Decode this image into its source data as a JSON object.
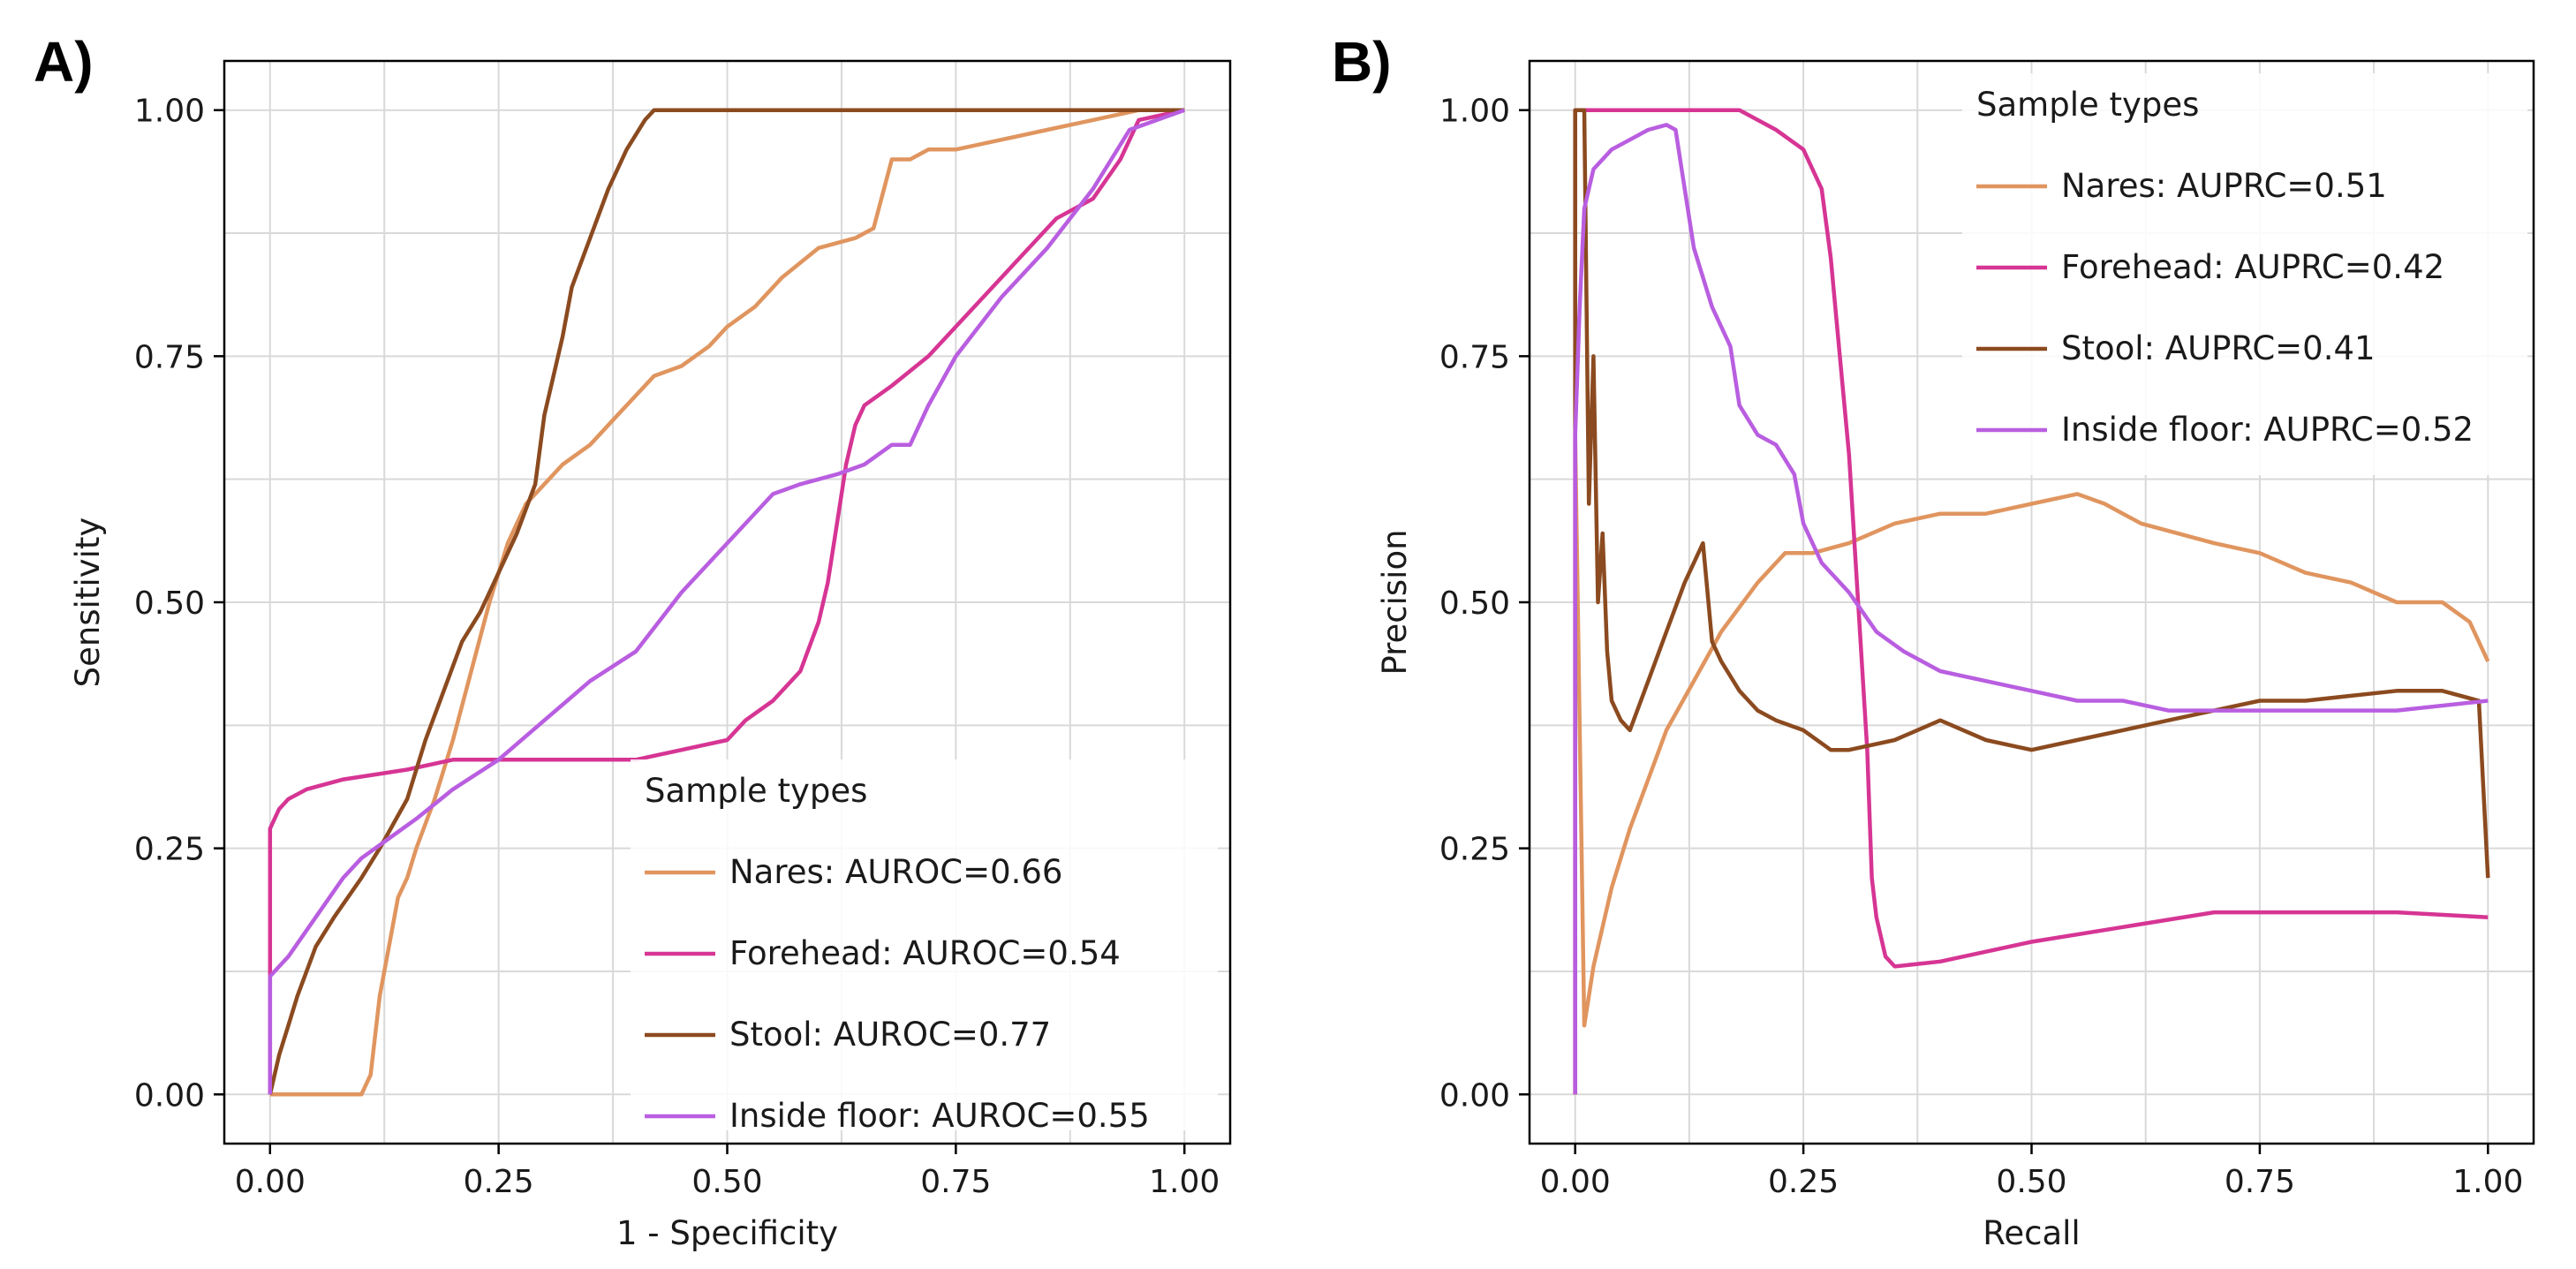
{
  "chart_data": [
    {
      "panel_label": "A)",
      "type": "line",
      "xlabel": "1 - Specificity",
      "ylabel": "Sensitivity",
      "xlim": [
        -0.05,
        1.05
      ],
      "ylim": [
        -0.05,
        1.05
      ],
      "xticks": [
        "0.00",
        "0.25",
        "0.50",
        "0.75",
        "1.00"
      ],
      "yticks": [
        "0.00",
        "0.25",
        "0.50",
        "0.75",
        "1.00"
      ],
      "grid": true,
      "legend": {
        "title": "Sample types",
        "placement": "lower-right",
        "entries": [
          "Nares: AUROC=0.66",
          "Forehead: AUROC=0.54",
          "Stool: AUROC=0.77",
          "Inside floor: AUROC=0.55"
        ]
      },
      "series": [
        {
          "name": "Nares: AUROC=0.66",
          "color": "#e0955f",
          "x": [
            0,
            0.05,
            0.1,
            0.11,
            0.12,
            0.13,
            0.14,
            0.15,
            0.16,
            0.18,
            0.2,
            0.22,
            0.24,
            0.26,
            0.28,
            0.3,
            0.32,
            0.35,
            0.38,
            0.4,
            0.42,
            0.45,
            0.48,
            0.5,
            0.53,
            0.56,
            0.6,
            0.64,
            0.66,
            0.68,
            0.7,
            0.72,
            0.75,
            0.8,
            0.85,
            0.9,
            0.95,
            1.0
          ],
          "y": [
            0,
            0,
            0,
            0.02,
            0.1,
            0.15,
            0.2,
            0.22,
            0.25,
            0.3,
            0.36,
            0.43,
            0.5,
            0.56,
            0.6,
            0.62,
            0.64,
            0.66,
            0.69,
            0.71,
            0.73,
            0.74,
            0.76,
            0.78,
            0.8,
            0.83,
            0.86,
            0.87,
            0.88,
            0.95,
            0.95,
            0.96,
            0.96,
            0.97,
            0.98,
            0.99,
            1.0,
            1.0
          ]
        },
        {
          "name": "Forehead: AUROC=0.54",
          "color": "#d63594",
          "x": [
            0,
            0,
            0.01,
            0.02,
            0.04,
            0.08,
            0.15,
            0.2,
            0.3,
            0.4,
            0.45,
            0.5,
            0.52,
            0.55,
            0.58,
            0.6,
            0.61,
            0.62,
            0.63,
            0.64,
            0.65,
            0.68,
            0.72,
            0.75,
            0.78,
            0.82,
            0.86,
            0.9,
            0.93,
            0.95,
            1.0
          ],
          "y": [
            0,
            0.27,
            0.29,
            0.3,
            0.31,
            0.32,
            0.33,
            0.34,
            0.34,
            0.34,
            0.35,
            0.36,
            0.38,
            0.4,
            0.43,
            0.48,
            0.52,
            0.58,
            0.64,
            0.68,
            0.7,
            0.72,
            0.75,
            0.78,
            0.81,
            0.85,
            0.89,
            0.91,
            0.95,
            0.99,
            1.0
          ]
        },
        {
          "name": "Stool: AUROC=0.77",
          "color": "#8b4a1f",
          "x": [
            0,
            0.01,
            0.02,
            0.03,
            0.05,
            0.07,
            0.1,
            0.12,
            0.15,
            0.17,
            0.19,
            0.21,
            0.23,
            0.25,
            0.27,
            0.29,
            0.3,
            0.32,
            0.33,
            0.35,
            0.37,
            0.39,
            0.41,
            0.42,
            1.0
          ],
          "y": [
            0,
            0.04,
            0.07,
            0.1,
            0.15,
            0.18,
            0.22,
            0.25,
            0.3,
            0.36,
            0.41,
            0.46,
            0.49,
            0.53,
            0.57,
            0.62,
            0.69,
            0.77,
            0.82,
            0.87,
            0.92,
            0.96,
            0.99,
            1.0,
            1.0
          ]
        },
        {
          "name": "Inside floor: AUROC=0.55",
          "color": "#b95ee0",
          "x": [
            0,
            0,
            0.02,
            0.05,
            0.08,
            0.1,
            0.13,
            0.16,
            0.2,
            0.25,
            0.3,
            0.35,
            0.4,
            0.45,
            0.5,
            0.55,
            0.58,
            0.62,
            0.65,
            0.68,
            0.7,
            0.72,
            0.75,
            0.8,
            0.85,
            0.9,
            0.92,
            0.94,
            1.0
          ],
          "y": [
            0,
            0.12,
            0.14,
            0.18,
            0.22,
            0.24,
            0.26,
            0.28,
            0.31,
            0.34,
            0.38,
            0.42,
            0.45,
            0.51,
            0.56,
            0.61,
            0.62,
            0.63,
            0.64,
            0.66,
            0.66,
            0.7,
            0.75,
            0.81,
            0.86,
            0.92,
            0.95,
            0.98,
            1.0
          ]
        }
      ]
    },
    {
      "panel_label": "B)",
      "type": "line",
      "xlabel": "Recall",
      "ylabel": "Precision",
      "xlim": [
        -0.05,
        1.05
      ],
      "ylim": [
        -0.05,
        1.05
      ],
      "xticks": [
        "0.00",
        "0.25",
        "0.50",
        "0.75",
        "1.00"
      ],
      "yticks": [
        "0.00",
        "0.25",
        "0.50",
        "0.75",
        "1.00"
      ],
      "grid": true,
      "legend": {
        "title": "Sample types",
        "placement": "upper-right",
        "entries": [
          "Nares: AUPRC=0.51",
          "Forehead: AUPRC=0.42",
          "Stool: AUPRC=0.41",
          "Inside floor: AUPRC=0.52"
        ]
      },
      "series": [
        {
          "name": "Nares: AUPRC=0.51",
          "color": "#e0955f",
          "x": [
            0,
            0,
            0.01,
            0.02,
            0.04,
            0.06,
            0.08,
            0.1,
            0.13,
            0.16,
            0.2,
            0.23,
            0.26,
            0.3,
            0.35,
            0.4,
            0.45,
            0.5,
            0.55,
            0.58,
            0.62,
            0.7,
            0.75,
            0.8,
            0.85,
            0.9,
            0.95,
            0.98,
            1.0
          ],
          "y": [
            0,
            0.67,
            0.07,
            0.13,
            0.21,
            0.27,
            0.32,
            0.37,
            0.42,
            0.47,
            0.52,
            0.55,
            0.55,
            0.56,
            0.58,
            0.59,
            0.59,
            0.6,
            0.61,
            0.6,
            0.58,
            0.56,
            0.55,
            0.53,
            0.52,
            0.5,
            0.5,
            0.48,
            0.44
          ]
        },
        {
          "name": "Forehead: AUPRC=0.42",
          "color": "#d63594",
          "x": [
            0,
            0,
            0.01,
            0.05,
            0.18,
            0.22,
            0.25,
            0.27,
            0.28,
            0.29,
            0.3,
            0.31,
            0.32,
            0.325,
            0.33,
            0.34,
            0.35,
            0.4,
            0.5,
            0.6,
            0.7,
            0.8,
            0.9,
            1.0
          ],
          "y": [
            0,
            1.0,
            1.0,
            1.0,
            1.0,
            0.98,
            0.96,
            0.92,
            0.85,
            0.75,
            0.65,
            0.5,
            0.35,
            0.22,
            0.18,
            0.14,
            0.13,
            0.135,
            0.155,
            0.17,
            0.185,
            0.185,
            0.185,
            0.18
          ]
        },
        {
          "name": "Stool: AUPRC=0.41",
          "color": "#8b4a1f",
          "x": [
            0,
            0,
            0.005,
            0.01,
            0.015,
            0.02,
            0.025,
            0.03,
            0.035,
            0.04,
            0.05,
            0.06,
            0.08,
            0.1,
            0.12,
            0.14,
            0.15,
            0.16,
            0.18,
            0.2,
            0.22,
            0.25,
            0.28,
            0.3,
            0.35,
            0.4,
            0.45,
            0.5,
            0.55,
            0.6,
            0.65,
            0.7,
            0.75,
            0.8,
            0.85,
            0.9,
            0.95,
            0.99,
            1.0
          ],
          "y": [
            0,
            1.0,
            1.0,
            1.0,
            0.6,
            0.75,
            0.5,
            0.57,
            0.45,
            0.4,
            0.38,
            0.37,
            0.42,
            0.47,
            0.52,
            0.56,
            0.46,
            0.44,
            0.41,
            0.39,
            0.38,
            0.37,
            0.35,
            0.35,
            0.36,
            0.38,
            0.36,
            0.35,
            0.36,
            0.37,
            0.38,
            0.39,
            0.4,
            0.4,
            0.405,
            0.41,
            0.41,
            0.4,
            0.22
          ]
        },
        {
          "name": "Inside floor: AUPRC=0.52",
          "color": "#b95ee0",
          "x": [
            0,
            0,
            0.005,
            0.01,
            0.02,
            0.04,
            0.06,
            0.08,
            0.1,
            0.11,
            0.12,
            0.13,
            0.15,
            0.17,
            0.18,
            0.2,
            0.22,
            0.24,
            0.25,
            0.27,
            0.3,
            0.33,
            0.36,
            0.4,
            0.45,
            0.5,
            0.55,
            0.6,
            0.65,
            0.7,
            0.8,
            0.9,
            1.0
          ],
          "y": [
            0,
            0.67,
            0.8,
            0.9,
            0.94,
            0.96,
            0.97,
            0.98,
            0.985,
            0.98,
            0.92,
            0.86,
            0.8,
            0.76,
            0.7,
            0.67,
            0.66,
            0.63,
            0.58,
            0.54,
            0.51,
            0.47,
            0.45,
            0.43,
            0.42,
            0.41,
            0.4,
            0.4,
            0.39,
            0.39,
            0.39,
            0.39,
            0.4
          ]
        }
      ]
    }
  ]
}
